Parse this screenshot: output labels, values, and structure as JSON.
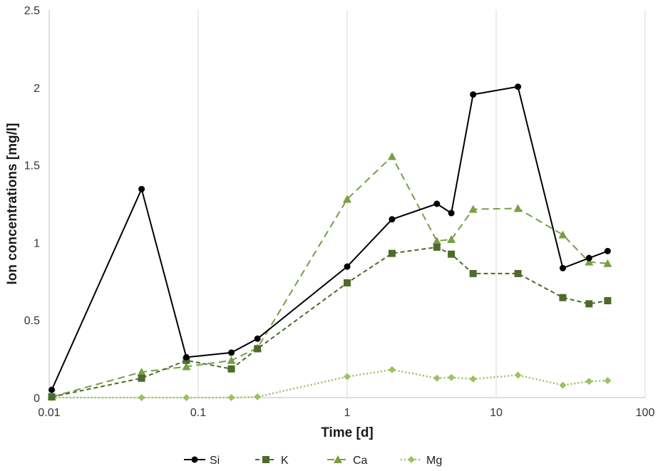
{
  "chart_data": {
    "type": "line",
    "title": "",
    "xlabel": "Time [d]",
    "ylabel": "Ion concentrations [mg/l]",
    "xscale": "log",
    "xlim": [
      0.01,
      100
    ],
    "ylim": [
      0,
      2.5
    ],
    "xticks": [
      0.01,
      0.1,
      1,
      10,
      100
    ],
    "xtick_labels": [
      "0.01",
      "0.1",
      "1",
      "10",
      "100"
    ],
    "yticks": [
      0,
      0.5,
      1,
      1.5,
      2,
      2.5
    ],
    "ytick_labels": [
      "0",
      "0.5",
      "1",
      "1.5",
      "2",
      "2.5"
    ],
    "grid": "vertical",
    "legend": "bottom",
    "series": [
      {
        "name": "Si",
        "color": "#000000",
        "dash": "solid",
        "marker": "circle",
        "x": [
          0.0104,
          0.0417,
          0.0833,
          0.167,
          0.25,
          1,
          2,
          4,
          5,
          7,
          14,
          28,
          42,
          56
        ],
        "y": [
          0.05,
          1.345,
          0.26,
          0.29,
          0.38,
          0.845,
          1.15,
          1.25,
          1.19,
          1.955,
          2.005,
          0.835,
          0.9,
          0.945
        ]
      },
      {
        "name": "K",
        "color": "#4d6b2a",
        "dash": "dashed",
        "marker": "square",
        "x": [
          0.0104,
          0.0417,
          0.0833,
          0.167,
          0.25,
          1,
          2,
          4,
          5,
          7,
          14,
          28,
          42,
          56
        ],
        "y": [
          0.005,
          0.125,
          0.24,
          0.185,
          0.315,
          0.74,
          0.93,
          0.97,
          0.925,
          0.8,
          0.8,
          0.645,
          0.605,
          0.625
        ]
      },
      {
        "name": "Ca",
        "color": "#77a043",
        "dash": "longdash",
        "marker": "triangle",
        "x": [
          0.0104,
          0.0417,
          0.0833,
          0.167,
          0.25,
          1,
          2,
          4,
          5,
          7,
          14,
          28,
          42,
          56
        ],
        "y": [
          0.005,
          0.165,
          0.2,
          0.24,
          0.32,
          1.28,
          1.555,
          1.01,
          1.02,
          1.215,
          1.22,
          1.05,
          0.875,
          0.865
        ]
      },
      {
        "name": "Mg",
        "color": "#9bc261",
        "dash": "dotted",
        "marker": "diamond",
        "x": [
          0.0104,
          0.0417,
          0.0833,
          0.167,
          0.25,
          1,
          2,
          4,
          5,
          7,
          14,
          28,
          42,
          56
        ],
        "y": [
          0.0,
          0.0,
          0.0,
          0.0,
          0.005,
          0.135,
          0.18,
          0.125,
          0.13,
          0.12,
          0.145,
          0.08,
          0.105,
          0.11
        ]
      }
    ]
  }
}
